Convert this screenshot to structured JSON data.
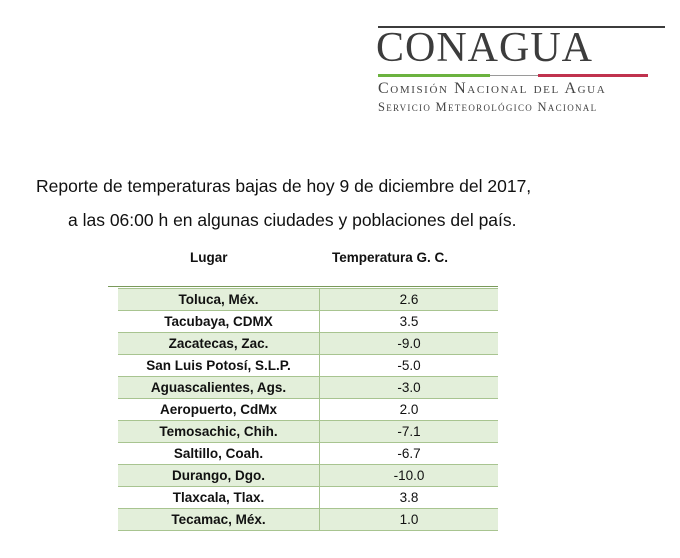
{
  "logo": {
    "wordmark": "CONAGUA",
    "line1": "Comisión Nacional del Agua",
    "line2": "Servicio Meteorológico Nacional"
  },
  "report": {
    "line1": "Reporte de temperaturas bajas de hoy 9 de diciembre del 2017,",
    "line2": "a las 06:00 h en algunas ciudades y poblaciones del país."
  },
  "table": {
    "headers": {
      "place": "Lugar",
      "temperature": "Temperatura G. C."
    },
    "rows": [
      {
        "place": "Toluca, Méx.",
        "temp": "2.6"
      },
      {
        "place": "Tacubaya, CDMX",
        "temp": "3.5"
      },
      {
        "place": "Zacatecas, Zac.",
        "temp": "-9.0"
      },
      {
        "place": "San Luis Potosí, S.L.P.",
        "temp": "-5.0"
      },
      {
        "place": "Aguascalientes, Ags.",
        "temp": "-3.0"
      },
      {
        "place": "Aeropuerto, CdMx",
        "temp": "2.0"
      },
      {
        "place": "Temosachic, Chih.",
        "temp": "-7.1"
      },
      {
        "place": "Saltillo, Coah.",
        "temp": "-6.7"
      },
      {
        "place": "Durango, Dgo.",
        "temp": "-10.0"
      },
      {
        "place": "Tlaxcala, Tlax.",
        "temp": "3.8"
      },
      {
        "place": "Tecamac, Méx.",
        "temp": "1.0"
      }
    ]
  },
  "colors": {
    "row_stripe": "#e3efda",
    "logo_green": "#6bb23f",
    "logo_red": "#c0324e"
  }
}
